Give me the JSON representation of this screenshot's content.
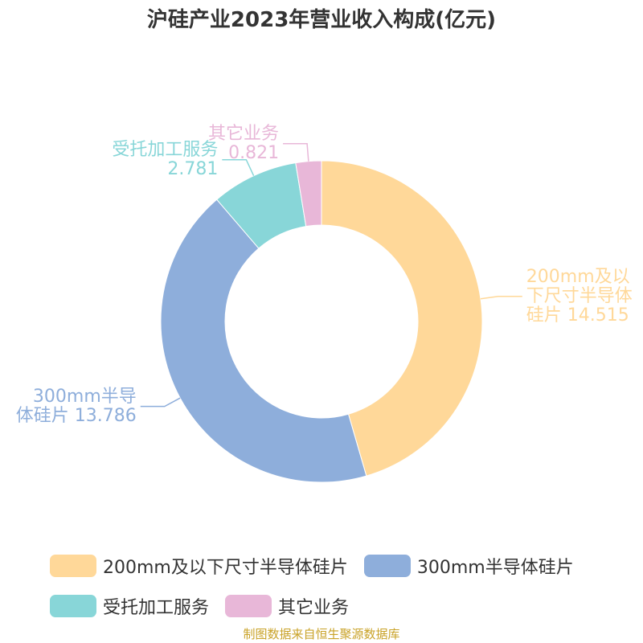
{
  "chart_data": {
    "type": "donut",
    "title": "沪硅产业2023年营业收入构成(亿元)",
    "categories": [
      "200mm及以下尺寸半导体硅片",
      "300mm半导体硅片",
      "受托加工服务",
      "其它业务"
    ],
    "values": [
      14.515,
      13.786,
      2.781,
      0.821
    ],
    "colors": [
      "#ffd899",
      "#8eaedb",
      "#88d6d8",
      "#e8b7d8"
    ],
    "source": "制图数据来自恒生聚源数据库"
  }
}
